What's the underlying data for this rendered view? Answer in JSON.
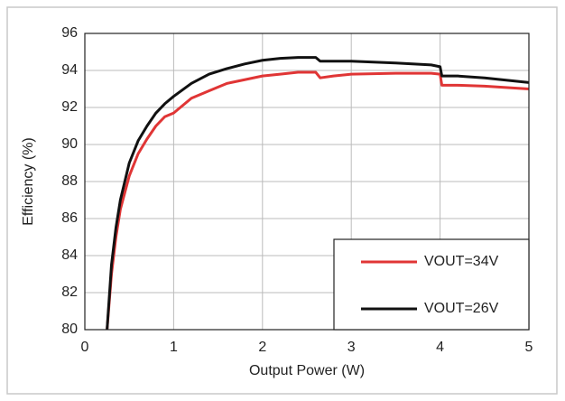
{
  "chart_data": {
    "type": "line",
    "x_label": "Output Power (W)",
    "y_label": "Efficiency (%)",
    "x": [
      0.25,
      0.3,
      0.35,
      0.4,
      0.5,
      0.6,
      0.7,
      0.8,
      0.9,
      1.0,
      1.2,
      1.4,
      1.6,
      1.8,
      2.0,
      2.2,
      2.4,
      2.6,
      2.65,
      2.8,
      3.0,
      3.5,
      3.9,
      4.0,
      4.02,
      4.2,
      4.5,
      5.0
    ],
    "series": [
      {
        "name": "VOUT=34V",
        "color": "#e03535",
        "values": [
          80,
          83,
          85,
          86.5,
          88.3,
          89.5,
          90.3,
          91,
          91.5,
          91.7,
          92.5,
          92.9,
          93.3,
          93.5,
          93.7,
          93.8,
          93.9,
          93.9,
          93.6,
          93.7,
          93.8,
          93.85,
          93.85,
          93.8,
          93.2,
          93.2,
          93.15,
          93.0
        ]
      },
      {
        "name": "VOUT=26V",
        "color": "#111111",
        "values": [
          80,
          83.5,
          85.5,
          87,
          89,
          90.2,
          91,
          91.7,
          92.2,
          92.6,
          93.3,
          93.8,
          94.1,
          94.35,
          94.55,
          94.65,
          94.7,
          94.7,
          94.5,
          94.5,
          94.5,
          94.4,
          94.3,
          94.2,
          93.7,
          93.7,
          93.6,
          93.35
        ]
      }
    ],
    "xlim": [
      0,
      5
    ],
    "xticks": [
      0,
      1,
      2,
      3,
      4,
      5
    ],
    "ylim": [
      80,
      96
    ],
    "yticks": [
      80,
      82,
      84,
      86,
      88,
      90,
      92,
      94,
      96
    ],
    "grid": true,
    "legend": "lower right"
  }
}
